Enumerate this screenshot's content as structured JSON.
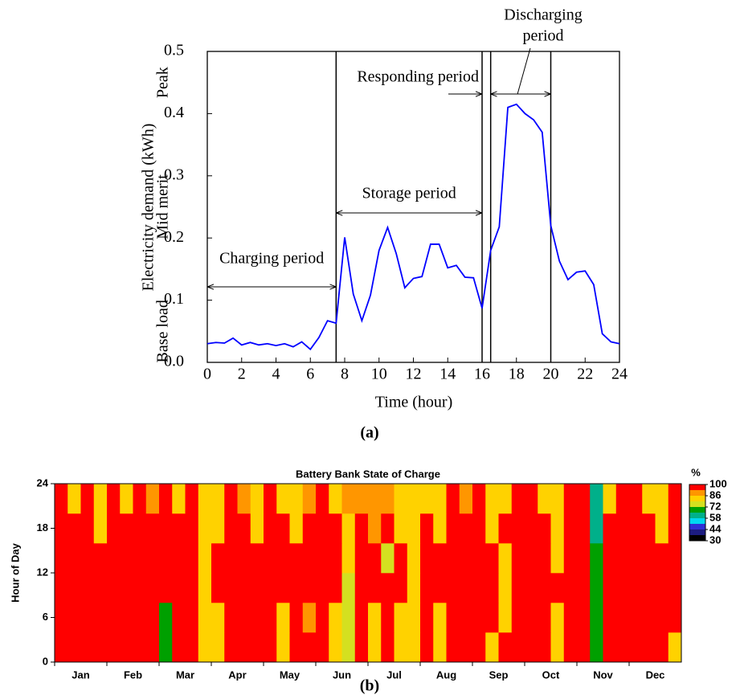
{
  "chart_data": [
    {
      "type": "line",
      "xlabel": "Time (hour)",
      "ylabel": "Electricity demand (kWh)",
      "caption": "(a)",
      "x": [
        0,
        0.5,
        1,
        1.5,
        2,
        2.5,
        3,
        3.5,
        4,
        4.5,
        5,
        5.5,
        6,
        6.5,
        7,
        7.5,
        8,
        8.5,
        9,
        9.5,
        10,
        10.5,
        11,
        11.5,
        12,
        12.5,
        13,
        13.5,
        14,
        14.5,
        15,
        15.5,
        16,
        16.5,
        17,
        17.5,
        18,
        18.5,
        19,
        19.5,
        20,
        20.5,
        21,
        21.5,
        22,
        22.5,
        23,
        23.5,
        24
      ],
      "values": [
        0.03,
        0.032,
        0.031,
        0.039,
        0.028,
        0.032,
        0.028,
        0.03,
        0.027,
        0.03,
        0.025,
        0.033,
        0.021,
        0.04,
        0.067,
        0.063,
        0.201,
        0.11,
        0.067,
        0.108,
        0.18,
        0.217,
        0.175,
        0.12,
        0.135,
        0.138,
        0.19,
        0.19,
        0.152,
        0.156,
        0.137,
        0.136,
        0.087,
        0.18,
        0.218,
        0.41,
        0.415,
        0.4,
        0.39,
        0.37,
        0.22,
        0.163,
        0.133,
        0.145,
        0.147,
        0.125,
        0.046,
        0.033,
        0.03
      ],
      "color": "#0000ff",
      "xlim": [
        0,
        24
      ],
      "xticks": [
        0,
        2,
        4,
        6,
        8,
        10,
        12,
        14,
        16,
        18,
        20,
        22,
        24
      ],
      "ylim": [
        0,
        0.5
      ],
      "yticks": [
        {
          "value": 0,
          "label": "0.0"
        },
        0.1,
        0.2,
        0.3,
        0.4,
        0.5
      ],
      "band_labels": [
        "Base load",
        "Mid merit",
        "Peak"
      ],
      "vlines": [
        7.5,
        16,
        16.5,
        20
      ],
      "annotations": [
        "Charging period",
        "Storage period",
        "Responding period",
        "Discharging",
        "period"
      ]
    },
    {
      "type": "heatmap",
      "title": "Battery Bank State of Charge",
      "ylabel": "Hour of Day",
      "caption": "(b)",
      "categories": [
        "Jan",
        "Feb",
        "Mar",
        "Apr",
        "May",
        "Jun",
        "Jul",
        "Aug",
        "Sep",
        "Oct",
        "Nov",
        "Dec"
      ],
      "ylim": [
        0,
        24
      ],
      "yticks": [
        0,
        6,
        12,
        18,
        24
      ],
      "z": [
        [
          100,
          100,
          100,
          100,
          100,
          100,
          100,
          100,
          68,
          100,
          100,
          82,
          82,
          100,
          100,
          100,
          100,
          82,
          100,
          100,
          100,
          82,
          76,
          100,
          82,
          100,
          82,
          82,
          100,
          82,
          100,
          100,
          100,
          82,
          100,
          100,
          100,
          100,
          82,
          100,
          100,
          66,
          100,
          100,
          100,
          100,
          100,
          82
        ],
        [
          100,
          100,
          100,
          100,
          100,
          100,
          100,
          100,
          66,
          100,
          100,
          82,
          82,
          100,
          100,
          100,
          100,
          82,
          100,
          88,
          100,
          82,
          76,
          100,
          82,
          100,
          82,
          82,
          100,
          82,
          100,
          100,
          100,
          100,
          82,
          100,
          100,
          100,
          82,
          100,
          100,
          66,
          100,
          100,
          100,
          100,
          100,
          100
        ],
        [
          100,
          100,
          100,
          100,
          100,
          100,
          100,
          100,
          100,
          100,
          100,
          82,
          100,
          100,
          100,
          100,
          100,
          100,
          100,
          100,
          100,
          100,
          76,
          100,
          100,
          100,
          100,
          82,
          100,
          100,
          100,
          100,
          100,
          100,
          82,
          100,
          100,
          100,
          100,
          100,
          100,
          66,
          100,
          100,
          100,
          100,
          100,
          100
        ],
        [
          100,
          100,
          100,
          100,
          100,
          100,
          100,
          100,
          100,
          100,
          100,
          82,
          100,
          100,
          100,
          100,
          100,
          100,
          100,
          100,
          100,
          100,
          82,
          100,
          100,
          76,
          100,
          82,
          100,
          100,
          100,
          100,
          100,
          100,
          82,
          100,
          100,
          100,
          82,
          100,
          100,
          66,
          100,
          100,
          100,
          100,
          100,
          100
        ],
        [
          100,
          100,
          100,
          82,
          100,
          100,
          100,
          100,
          100,
          100,
          100,
          82,
          82,
          100,
          100,
          82,
          100,
          100,
          82,
          100,
          100,
          100,
          82,
          100,
          88,
          100,
          82,
          82,
          100,
          82,
          100,
          100,
          100,
          82,
          100,
          100,
          100,
          100,
          82,
          100,
          100,
          60,
          100,
          100,
          100,
          100,
          82,
          100
        ],
        [
          100,
          82,
          100,
          82,
          100,
          82,
          100,
          88,
          100,
          82,
          100,
          82,
          82,
          100,
          88,
          82,
          100,
          82,
          82,
          88,
          100,
          82,
          88,
          88,
          88,
          88,
          82,
          82,
          82,
          82,
          100,
          88,
          100,
          82,
          82,
          100,
          100,
          82,
          82,
          100,
          100,
          60,
          82,
          100,
          100,
          82,
          82,
          100
        ]
      ],
      "colorbar_unit": "%",
      "colorbar_levels": [
        30,
        37,
        44,
        51,
        58,
        65,
        72,
        79,
        86,
        93,
        100
      ],
      "colorbar_colors": [
        "#000000",
        "#1c1c80",
        "#2f2fd6",
        "#00d8f0",
        "#00b08a",
        "#00a000",
        "#d4e020",
        "#ffd200",
        "#ff9600",
        "#ff0000"
      ],
      "colorbar_ticks": [
        30,
        44,
        58,
        72,
        86,
        100
      ]
    }
  ]
}
